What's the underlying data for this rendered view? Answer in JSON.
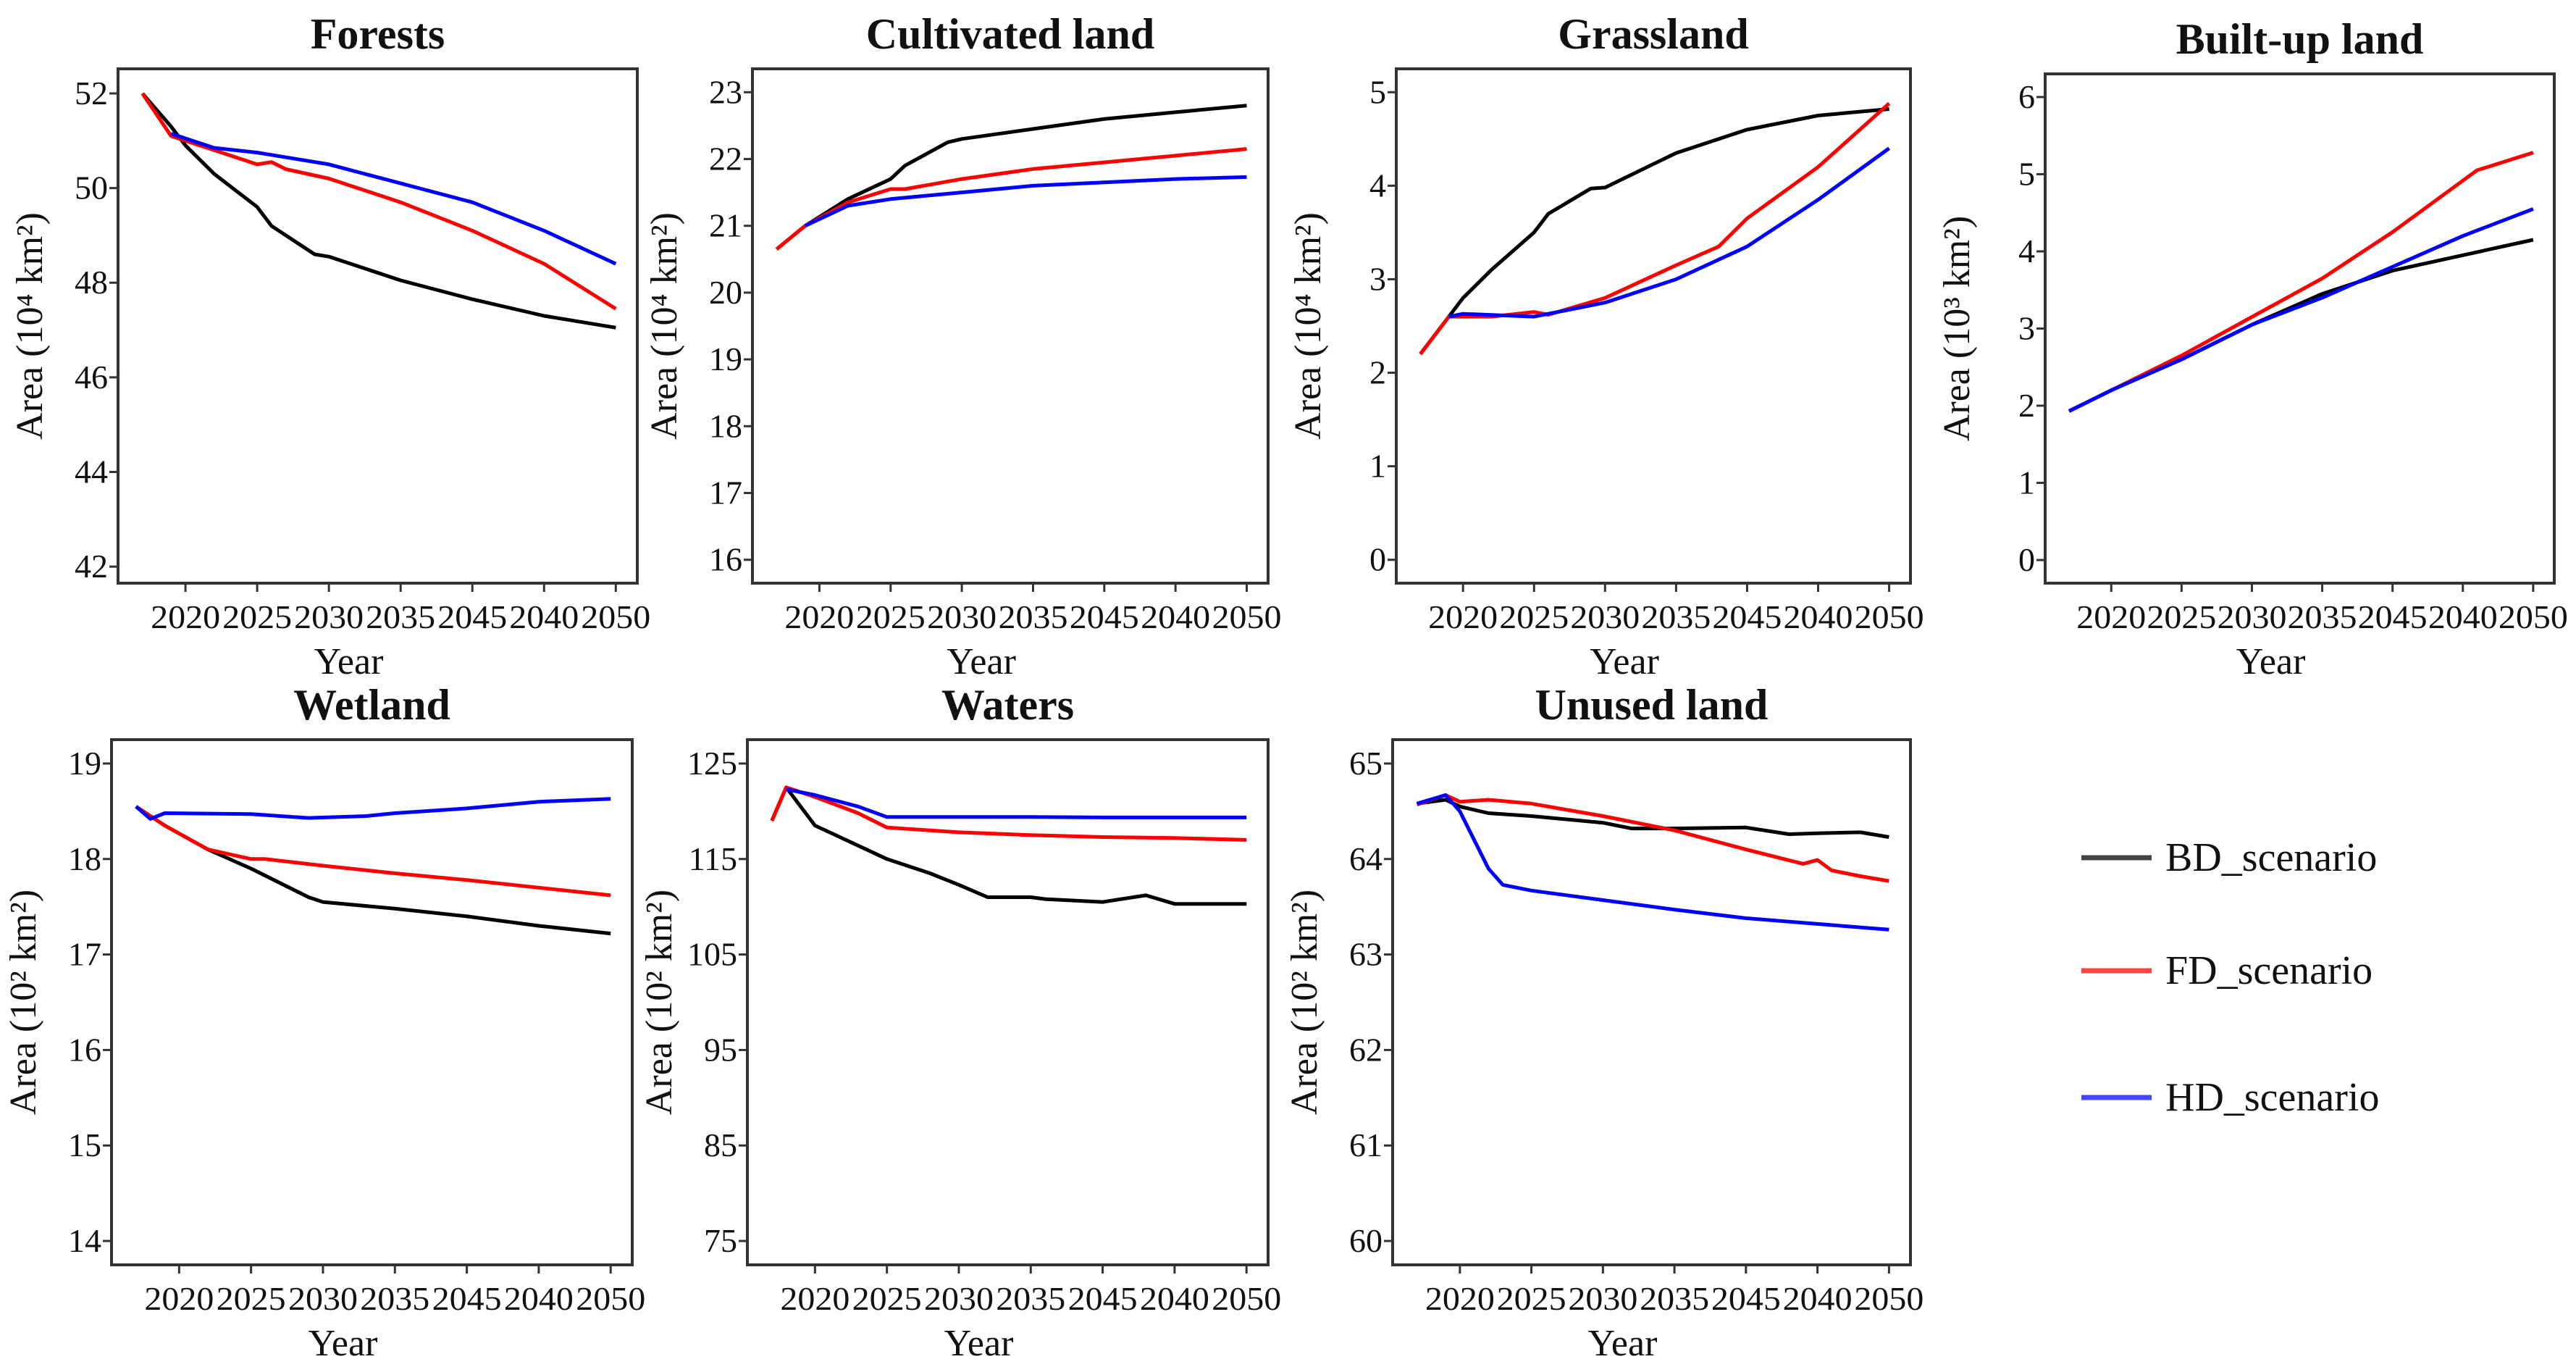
{
  "legend": {
    "placement": "right",
    "entries": [
      {
        "label": "BD_scenario",
        "color": "#000000"
      },
      {
        "label": "FD_scenario",
        "color": "#ff0000"
      },
      {
        "label": "HD_scenario",
        "color": "#0000ff"
      }
    ]
  },
  "chart_data": [
    {
      "type": "line",
      "title": "Forests",
      "xlabel": "Year",
      "ylabel": "Area (10⁴ km²)",
      "xticks": [
        "2020",
        "2025",
        "2030",
        "2035",
        "2045",
        "2040",
        "2050"
      ],
      "xlim": [
        2015.3,
        2051.5
      ],
      "ylim": [
        41.65,
        52.52
      ],
      "yticks": [
        42,
        44,
        46,
        48,
        50,
        52
      ],
      "grid": false,
      "series": [
        {
          "name": "BD_scenario",
          "x": [
            2017,
            2019,
            2020,
            2022,
            2025,
            2026,
            2029,
            2030,
            2035,
            2040,
            2045,
            2050
          ],
          "y": [
            52,
            51.3,
            50.9,
            50.3,
            49.6,
            49.2,
            48.6,
            48.55,
            48.05,
            47.65,
            47.3,
            47.05
          ]
        },
        {
          "name": "FD_scenario",
          "x": [
            2017,
            2019,
            2022,
            2025,
            2026,
            2027,
            2030,
            2035,
            2040,
            2045,
            2050
          ],
          "y": [
            52,
            51.1,
            50.8,
            50.5,
            50.55,
            50.4,
            50.2,
            49.7,
            49.1,
            48.4,
            47.45
          ]
        },
        {
          "name": "HD_scenario",
          "x": [
            2019,
            2022,
            2025,
            2030,
            2035,
            2040,
            2045,
            2050
          ],
          "y": [
            51.15,
            50.85,
            50.75,
            50.5,
            50.1,
            49.7,
            49.1,
            48.4
          ]
        }
      ]
    },
    {
      "type": "line",
      "title": "Cultivated land",
      "xlabel": "Year",
      "ylabel": "Area (10⁴ km²)",
      "xticks": [
        "2020",
        "2025",
        "2030",
        "2035",
        "2045",
        "2040",
        "2050"
      ],
      "xlim": [
        2015.3,
        2051.5
      ],
      "ylim": [
        15.65,
        23.35
      ],
      "yticks": [
        16,
        17,
        18,
        19,
        20,
        21,
        22,
        23
      ],
      "grid": false,
      "series": [
        {
          "name": "BD_scenario",
          "x": [
            2017,
            2019,
            2022,
            2025,
            2026,
            2029,
            2030,
            2035,
            2040,
            2045,
            2050
          ],
          "y": [
            20.65,
            21.0,
            21.4,
            21.7,
            21.9,
            22.25,
            22.3,
            22.45,
            22.6,
            22.7,
            22.8
          ]
        },
        {
          "name": "FD_scenario",
          "x": [
            2017,
            2019,
            2022,
            2025,
            2026,
            2030,
            2035,
            2040,
            2045,
            2050
          ],
          "y": [
            20.65,
            21.0,
            21.35,
            21.55,
            21.55,
            21.7,
            21.85,
            21.95,
            22.05,
            22.15
          ]
        },
        {
          "name": "HD_scenario",
          "x": [
            2019,
            2022,
            2025,
            2030,
            2035,
            2040,
            2045,
            2050
          ],
          "y": [
            21.0,
            21.3,
            21.4,
            21.5,
            21.6,
            21.65,
            21.7,
            21.73
          ]
        }
      ]
    },
    {
      "type": "line",
      "title": "Grassland",
      "xlabel": "Year",
      "ylabel": "Area (10⁴ km²)",
      "xticks": [
        "2020",
        "2025",
        "2030",
        "2035",
        "2045",
        "2040",
        "2050"
      ],
      "xlim": [
        2015.3,
        2051.5
      ],
      "ylim": [
        -0.25,
        5.25
      ],
      "yticks": [
        0,
        1,
        2,
        3,
        4,
        5
      ],
      "grid": false,
      "series": [
        {
          "name": "BD_scenario",
          "x": [
            2017,
            2019,
            2020,
            2022,
            2025,
            2026,
            2029,
            2030,
            2035,
            2040,
            2045,
            2050
          ],
          "y": [
            2.2,
            2.6,
            2.8,
            3.1,
            3.5,
            3.7,
            3.97,
            3.98,
            4.35,
            4.6,
            4.75,
            4.82
          ]
        },
        {
          "name": "FD_scenario",
          "x": [
            2017,
            2019,
            2022,
            2025,
            2026,
            2030,
            2035,
            2038,
            2040,
            2045,
            2050
          ],
          "y": [
            2.2,
            2.6,
            2.6,
            2.65,
            2.62,
            2.8,
            3.15,
            3.35,
            3.65,
            4.2,
            4.88
          ]
        },
        {
          "name": "HD_scenario",
          "x": [
            2019,
            2020,
            2025,
            2030,
            2035,
            2040,
            2045,
            2050
          ],
          "y": [
            2.6,
            2.63,
            2.6,
            2.75,
            3.0,
            3.35,
            3.85,
            4.4
          ]
        }
      ]
    },
    {
      "type": "line",
      "title": "Built-up land",
      "xlabel": "Year",
      "ylabel": "Area (10³ km²)",
      "xticks": [
        "2020",
        "2025",
        "2030",
        "2035",
        "2045",
        "2040",
        "2050"
      ],
      "xlim": [
        2015.3,
        2051.5
      ],
      "ylim": [
        -0.3,
        6.3
      ],
      "yticks": [
        0,
        1,
        2,
        3,
        4,
        5,
        6
      ],
      "grid": false,
      "series": [
        {
          "name": "BD_scenario",
          "x": [
            2017,
            2020,
            2025,
            2030,
            2035,
            2040,
            2045,
            2050
          ],
          "y": [
            1.93,
            2.2,
            2.6,
            3.05,
            3.45,
            3.75,
            3.95,
            4.15
          ]
        },
        {
          "name": "FD_scenario",
          "x": [
            2017,
            2020,
            2025,
            2030,
            2035,
            2040,
            2046,
            2050
          ],
          "y": [
            1.93,
            2.2,
            2.65,
            3.15,
            3.65,
            4.25,
            5.05,
            5.28
          ]
        },
        {
          "name": "HD_scenario",
          "x": [
            2017,
            2020,
            2025,
            2030,
            2035,
            2040,
            2045,
            2050
          ],
          "y": [
            1.93,
            2.2,
            2.6,
            3.05,
            3.4,
            3.8,
            4.2,
            4.55
          ]
        }
      ]
    },
    {
      "type": "line",
      "title": "Wetland",
      "xlabel": "Year",
      "ylabel": "Area (10² km²)",
      "xticks": [
        "2020",
        "2025",
        "2030",
        "2035",
        "2045",
        "2040",
        "2050"
      ],
      "xlim": [
        2015.3,
        2051.5
      ],
      "ylim": [
        13.75,
        19.25
      ],
      "yticks": [
        14,
        15,
        16,
        17,
        18,
        19
      ],
      "grid": false,
      "series": [
        {
          "name": "BD_scenario",
          "x": [
            2017,
            2019,
            2022,
            2025,
            2029,
            2030,
            2035,
            2040,
            2045,
            2050
          ],
          "y": [
            18.55,
            18.35,
            18.1,
            17.9,
            17.6,
            17.55,
            17.48,
            17.4,
            17.3,
            17.22
          ]
        },
        {
          "name": "FD_scenario",
          "x": [
            2017,
            2019,
            2022,
            2025,
            2026,
            2030,
            2035,
            2040,
            2045,
            2050
          ],
          "y": [
            18.55,
            18.35,
            18.1,
            18.0,
            18.0,
            17.93,
            17.85,
            17.78,
            17.7,
            17.62
          ]
        },
        {
          "name": "HD_scenario",
          "x": [
            2017,
            2018,
            2019,
            2025,
            2029,
            2033,
            2035,
            2040,
            2045,
            2050
          ],
          "y": [
            18.55,
            18.42,
            18.48,
            18.47,
            18.43,
            18.45,
            18.48,
            18.53,
            18.6,
            18.63
          ]
        }
      ]
    },
    {
      "type": "line",
      "title": "Waters",
      "xlabel": "Year",
      "ylabel": "Area (10² km²)",
      "xticks": [
        "2020",
        "2025",
        "2030",
        "2035",
        "2045",
        "2040",
        "2050"
      ],
      "xlim": [
        2015.3,
        2051.5
      ],
      "ylim": [
        72.5,
        127.5
      ],
      "yticks": [
        75,
        85,
        95,
        105,
        115,
        125
      ],
      "grid": false,
      "series": [
        {
          "name": "BD_scenario",
          "x": [
            2017,
            2018,
            2020,
            2025,
            2028,
            2030,
            2032,
            2035,
            2036,
            2040,
            2043,
            2045,
            2050
          ],
          "y": [
            119,
            122.5,
            118.5,
            115,
            113.5,
            112.3,
            111,
            111,
            110.8,
            110.5,
            111.2,
            110.3,
            110.3
          ]
        },
        {
          "name": "FD_scenario",
          "x": [
            2017,
            2018,
            2020,
            2023,
            2025,
            2030,
            2035,
            2040,
            2045,
            2050
          ],
          "y": [
            119,
            122.5,
            121.5,
            119.8,
            118.3,
            117.8,
            117.5,
            117.3,
            117.2,
            117
          ]
        },
        {
          "name": "HD_scenario",
          "x": [
            2018,
            2020,
            2023,
            2025,
            2030,
            2035,
            2040,
            2045,
            2050
          ],
          "y": [
            122.3,
            121.7,
            120.5,
            119.4,
            119.4,
            119.4,
            119.35,
            119.35,
            119.35
          ]
        }
      ]
    },
    {
      "type": "line",
      "title": "Unused land",
      "xlabel": "Year",
      "ylabel": "Area (10² km²)",
      "xticks": [
        "2020",
        "2025",
        "2030",
        "2035",
        "2045",
        "2040",
        "2050"
      ],
      "xlim": [
        2015.3,
        2051.5
      ],
      "ylim": [
        59.75,
        65.25
      ],
      "yticks": [
        60,
        61,
        62,
        63,
        64,
        65
      ],
      "grid": false,
      "series": [
        {
          "name": "BD_scenario",
          "x": [
            2017,
            2019,
            2020,
            2022,
            2025,
            2030,
            2032,
            2035,
            2040,
            2043,
            2045,
            2048,
            2050
          ],
          "y": [
            64.58,
            64.62,
            64.55,
            64.48,
            64.45,
            64.38,
            64.32,
            64.32,
            64.33,
            64.26,
            64.27,
            64.28,
            64.23
          ]
        },
        {
          "name": "FD_scenario",
          "x": [
            2017,
            2019,
            2020,
            2022,
            2025,
            2030,
            2035,
            2040,
            2044,
            2045,
            2046,
            2048,
            2050
          ],
          "y": [
            64.57,
            64.67,
            64.6,
            64.62,
            64.58,
            64.45,
            64.3,
            64.1,
            63.95,
            63.99,
            63.88,
            63.82,
            63.77
          ]
        },
        {
          "name": "HD_scenario",
          "x": [
            2017,
            2019,
            2020,
            2022,
            2023,
            2025,
            2030,
            2035,
            2040,
            2045,
            2050
          ],
          "y": [
            64.58,
            64.67,
            64.5,
            63.9,
            63.73,
            63.67,
            63.57,
            63.47,
            63.38,
            63.32,
            63.26
          ]
        }
      ]
    }
  ]
}
